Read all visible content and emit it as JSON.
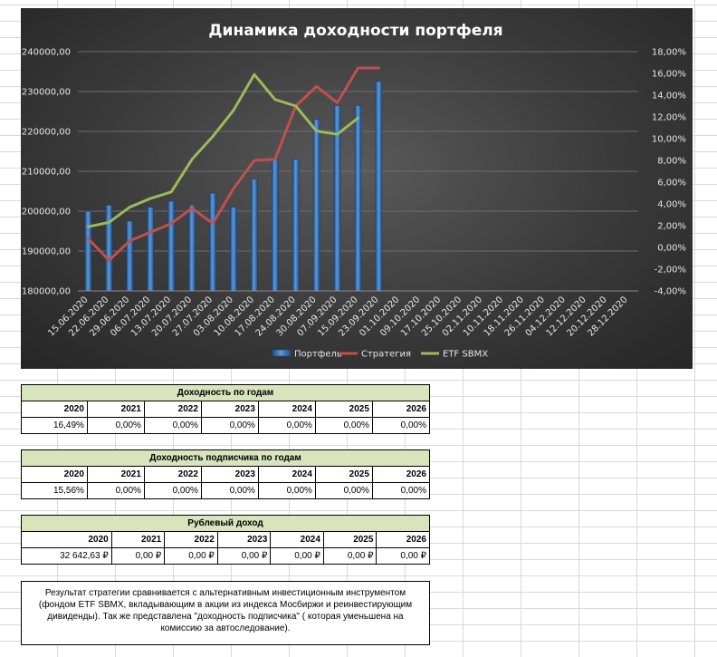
{
  "chart_data": {
    "type": "bar+line",
    "title": "Динамика доходности портфеля",
    "categories": [
      "15.06.2020",
      "22.06.2020",
      "29.06.2020",
      "06.07.2020",
      "13.07.2020",
      "20.07.2020",
      "27.07.2020",
      "03.08.2020",
      "10.08.2020",
      "17.08.2020",
      "24.08.2020",
      "30.08.2020",
      "07.09.2020",
      "15.09.2020",
      "23.09.2020",
      "01.10.2020",
      "09.10.2020",
      "17.10.2020",
      "25.10.2020",
      "02.11.2020",
      "10.11.2020",
      "18.11.2020",
      "26.11.2020",
      "04.12.2020",
      "12.12.2020",
      "20.12.2020",
      "28.12.2020"
    ],
    "y_left": {
      "ticks": [
        "240000,00",
        "230000,00",
        "220000,00",
        "210000,00",
        "200000,00",
        "190000,00",
        "180000,00"
      ],
      "min": 180000,
      "max": 240000
    },
    "y_right": {
      "ticks": [
        "18,00%",
        "16,00%",
        "14,00%",
        "12,00%",
        "10,00%",
        "8,00%",
        "6,00%",
        "4,00%",
        "2,00%",
        "0,00%",
        "-2,00%",
        "-4,00%"
      ],
      "min": -4,
      "max": 18
    },
    "series": [
      {
        "name": "Портфель",
        "kind": "bar",
        "axis": "left",
        "color": "#3a78c3",
        "values": [
          200000,
          201500,
          197500,
          201000,
          202500,
          201500,
          204500,
          201000,
          208000,
          213000,
          213000,
          223000,
          226500,
          226500,
          232500,
          null,
          null,
          null,
          null,
          null,
          null,
          null,
          null,
          null,
          null,
          null,
          null
        ]
      },
      {
        "name": "Стратегия",
        "kind": "line",
        "axis": "right",
        "color": "#c0504d",
        "values": [
          0.8,
          -1.2,
          0.6,
          1.4,
          2.2,
          3.6,
          2.2,
          5.4,
          8.0,
          8.1,
          13.0,
          14.8,
          13.3,
          16.5,
          16.5,
          null,
          null,
          null,
          null,
          null,
          null,
          null,
          null,
          null,
          null,
          null,
          null
        ]
      },
      {
        "name": "ETF SBMX",
        "kind": "line",
        "axis": "right",
        "color": "#9bbb59",
        "values": [
          1.9,
          2.3,
          3.7,
          4.5,
          5.1,
          8.1,
          10.2,
          12.6,
          15.9,
          13.6,
          13.0,
          10.7,
          10.4,
          11.9,
          null,
          null,
          null,
          null,
          null,
          null,
          null,
          null,
          null,
          null,
          null,
          null,
          null
        ]
      }
    ],
    "legend": "bottom"
  },
  "tables": [
    {
      "title": "Доходность по годам",
      "years": [
        "2020",
        "2021",
        "2022",
        "2023",
        "2024",
        "2025",
        "2026"
      ],
      "values": [
        "16,49%",
        "0,00%",
        "0,00%",
        "0,00%",
        "0,00%",
        "0,00%",
        "0,00%"
      ]
    },
    {
      "title": "Доходность подписчика по годам",
      "years": [
        "2020",
        "2021",
        "2022",
        "2023",
        "2024",
        "2025",
        "2026"
      ],
      "values": [
        "15,56%",
        "0,00%",
        "0,00%",
        "0,00%",
        "0,00%",
        "0,00%",
        "0,00%"
      ]
    },
    {
      "title": "Рублевый доход",
      "years": [
        "2020",
        "2021",
        "2022",
        "2023",
        "2024",
        "2025",
        "2026"
      ],
      "values": [
        "32 642,63 ₽",
        "0,00 ₽",
        "0,00 ₽",
        "0,00 ₽",
        "0,00 ₽",
        "0,00 ₽",
        "0,00 ₽"
      ]
    }
  ],
  "note": "Результат стратегии сравнивается с альтернативным инвестиционным инструментом (фондом ETF SBMX, вкладывающим в акции из индекса Мосбиржи и реинвестирующим дивиденды). Так же представлена \"доходность подписчика\" ( которая уменьшена на комиссию за автоследование)."
}
